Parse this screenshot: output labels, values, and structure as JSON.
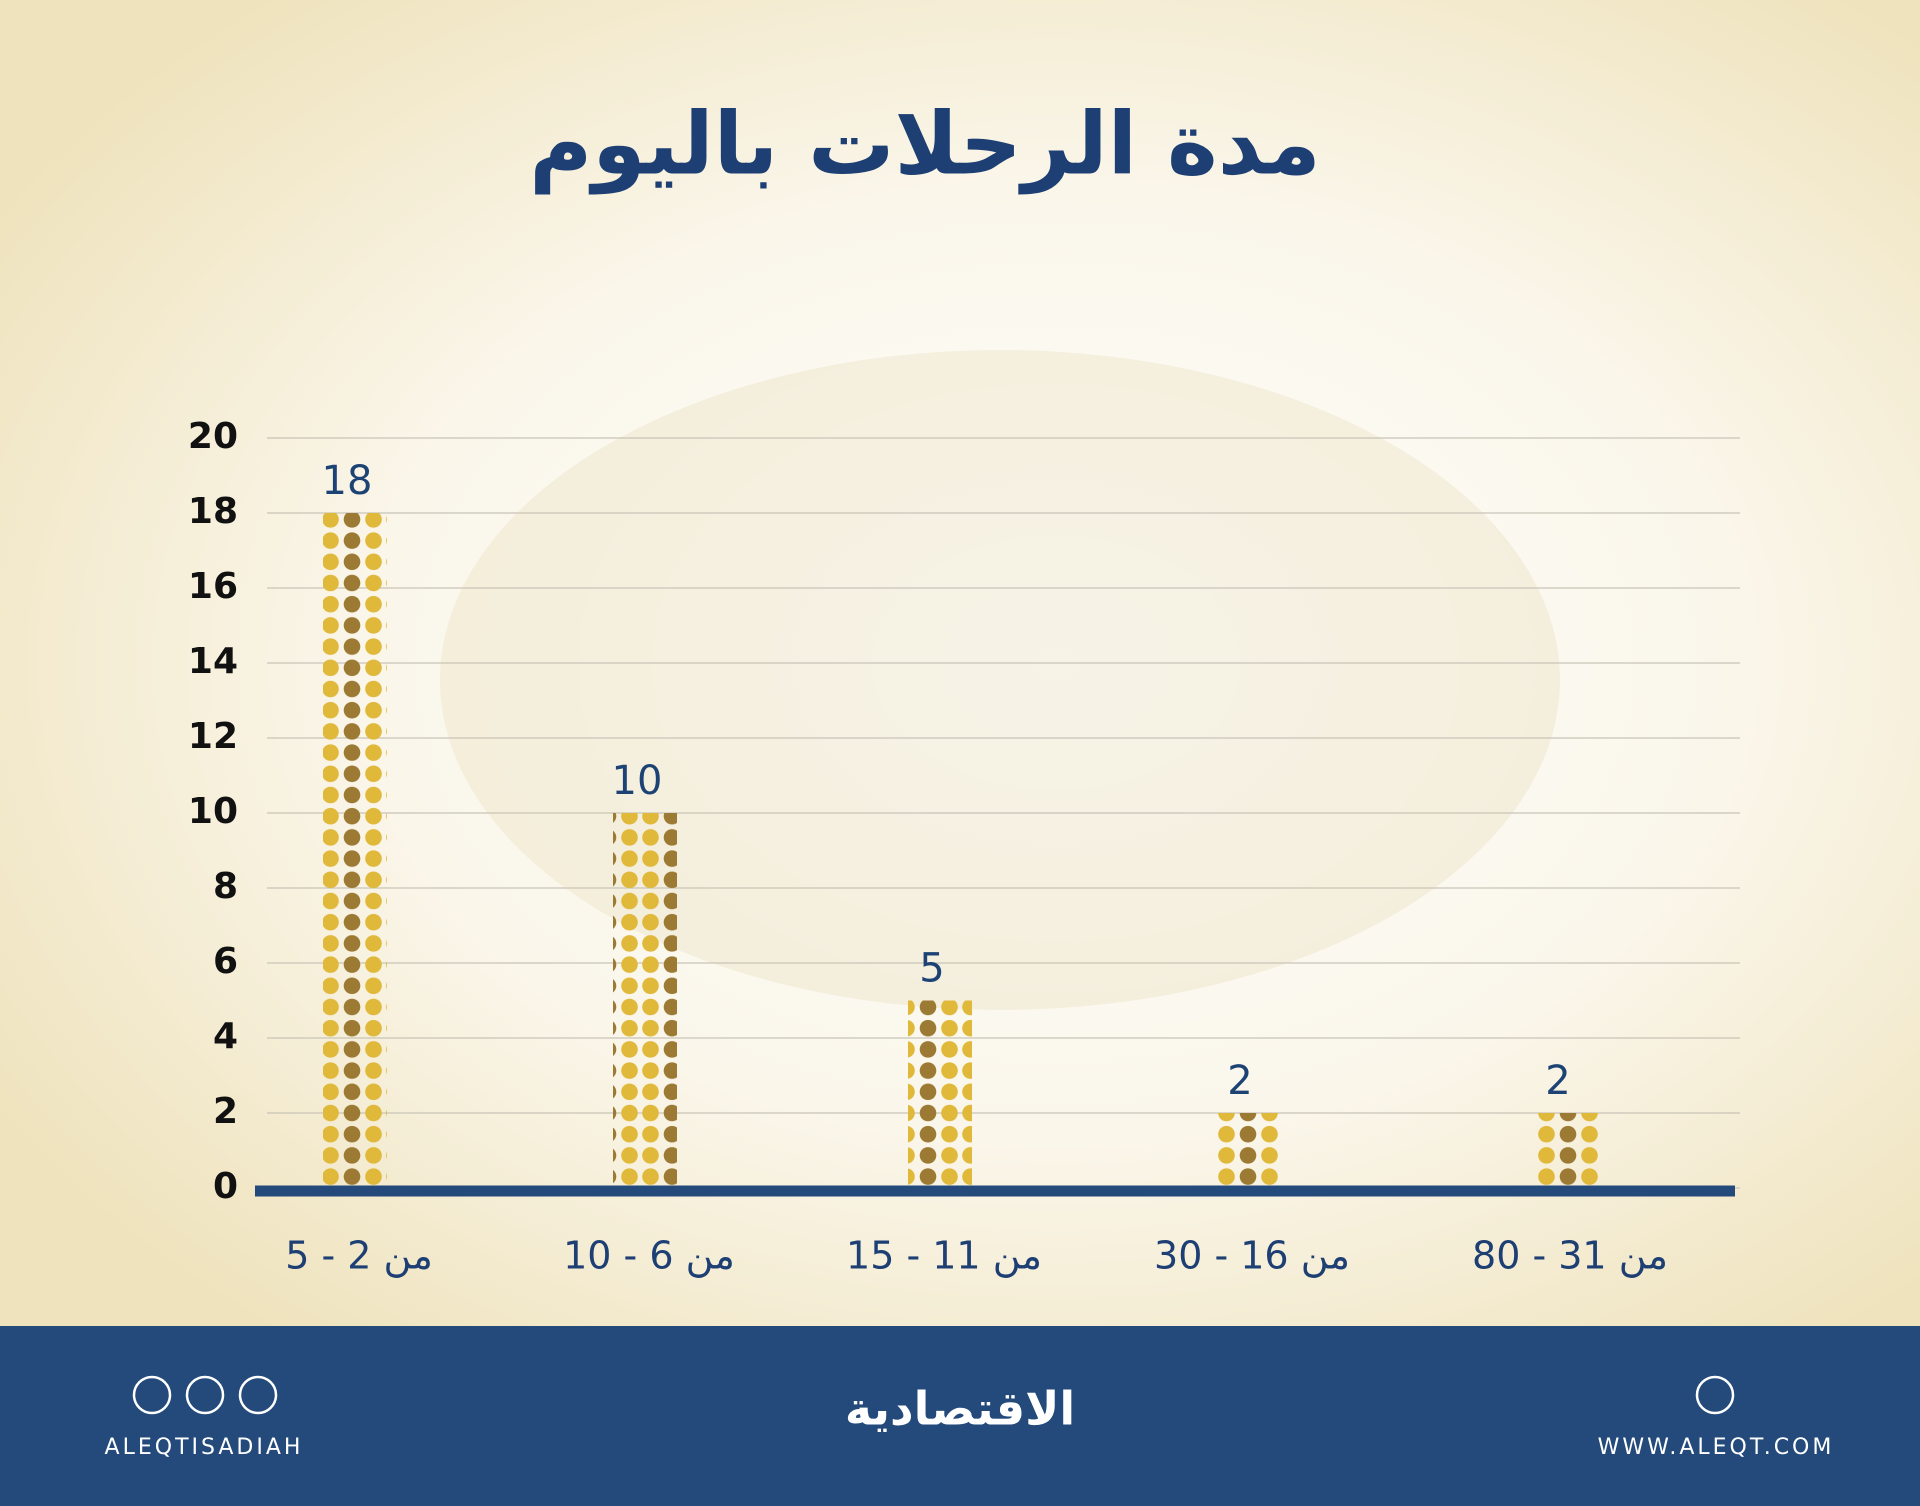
{
  "chart_data": {
    "type": "bar",
    "title": "مدة الرحلات باليوم",
    "categories": [
      "من 2 - 5",
      "من 6 - 10",
      "من 11 - 15",
      "من 16 - 30",
      "من 31 - 80"
    ],
    "values": [
      18,
      10,
      5,
      2,
      2
    ],
    "color": "#e0b83a",
    "ylim": [
      0,
      20
    ],
    "yticks": [
      0,
      2,
      4,
      6,
      8,
      10,
      12,
      14,
      16,
      18,
      20
    ],
    "grid": true
  },
  "footer": {
    "handle": "ALEQTISADIAH",
    "brand": "الاقتصادية",
    "website": "WWW.ALEQT.COM"
  }
}
